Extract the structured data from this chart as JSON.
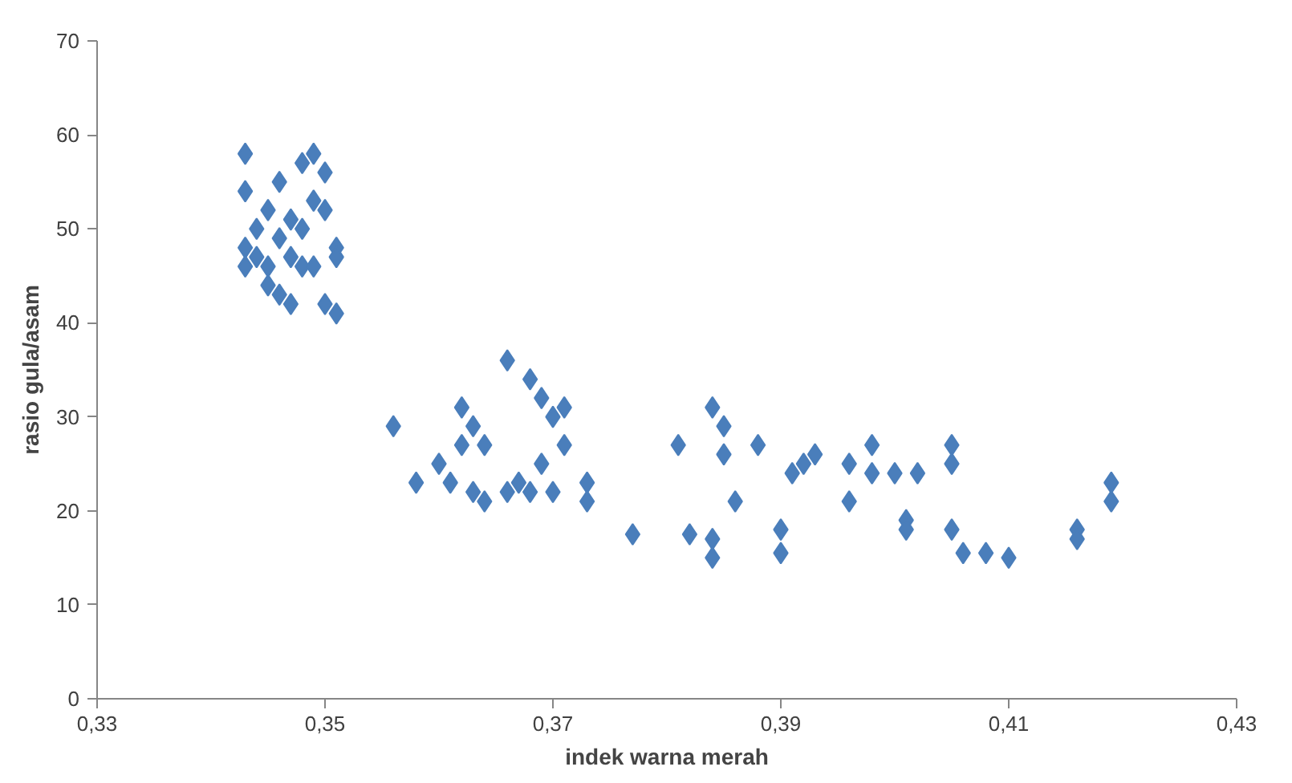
{
  "chart_data": {
    "type": "scatter",
    "xlabel": "indek warna merah",
    "ylabel": "rasio gula/asam",
    "marker": "diamond",
    "grid": false,
    "xlim": [
      0.33,
      0.43
    ],
    "ylim": [
      0,
      70
    ],
    "xticks": [
      {
        "value": 0.33,
        "label": "0,33"
      },
      {
        "value": 0.35,
        "label": "0,35"
      },
      {
        "value": 0.37,
        "label": "0,37"
      },
      {
        "value": 0.39,
        "label": "0,39"
      },
      {
        "value": 0.41,
        "label": "0,41"
      },
      {
        "value": 0.43,
        "label": "0,43"
      }
    ],
    "yticks": [
      0,
      10,
      20,
      30,
      40,
      50,
      60,
      70
    ],
    "series": [
      {
        "color": "#4a7ebb",
        "x": [
          0.343,
          0.343,
          0.343,
          0.343,
          0.344,
          0.344,
          0.345,
          0.345,
          0.346,
          0.346,
          0.346,
          0.347,
          0.347,
          0.347,
          0.348,
          0.348,
          0.349,
          0.349,
          0.349,
          0.35,
          0.35,
          0.35,
          0.351,
          0.351,
          0.351,
          0.348,
          0.345,
          0.356,
          0.358,
          0.36,
          0.361,
          0.362,
          0.362,
          0.363,
          0.363,
          0.364,
          0.364,
          0.366,
          0.366,
          0.367,
          0.368,
          0.368,
          0.369,
          0.369,
          0.37,
          0.37,
          0.371,
          0.371,
          0.373,
          0.373,
          0.377,
          0.381,
          0.382,
          0.384,
          0.384,
          0.384,
          0.385,
          0.385,
          0.386,
          0.388,
          0.39,
          0.39,
          0.391,
          0.392,
          0.393,
          0.396,
          0.396,
          0.398,
          0.398,
          0.4,
          0.401,
          0.401,
          0.402,
          0.405,
          0.405,
          0.405,
          0.406,
          0.408,
          0.41,
          0.416,
          0.416,
          0.419,
          0.419
        ],
        "values": [
          58,
          54,
          48,
          46,
          50,
          47,
          52,
          44,
          55,
          49,
          43,
          42,
          51,
          47,
          46,
          50,
          58,
          53,
          46,
          56,
          42,
          52,
          48,
          47,
          41,
          57,
          46,
          29,
          23,
          25,
          23,
          31,
          27,
          29,
          22,
          27,
          21,
          36,
          22,
          23,
          34,
          22,
          32,
          25,
          30,
          22,
          31,
          27,
          23,
          21,
          17.5,
          27,
          17.5,
          31,
          17,
          15,
          29,
          26,
          21,
          27,
          18,
          15.5,
          24,
          25,
          26,
          21,
          25,
          24,
          27,
          24,
          19,
          18,
          24,
          27,
          25,
          18,
          15.5,
          15.5,
          15,
          18,
          17,
          23,
          21
        ]
      }
    ]
  }
}
